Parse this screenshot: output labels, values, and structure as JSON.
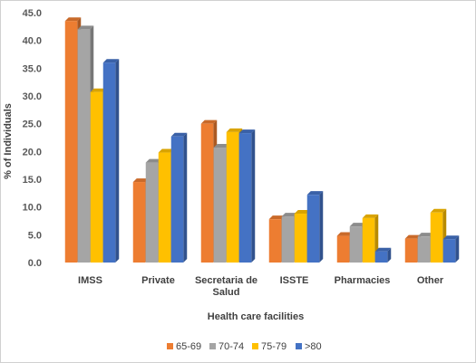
{
  "chart_data": {
    "type": "bar",
    "xlabel": "Health care facilities",
    "ylabel": "% of Individuals",
    "ylim": [
      0,
      45
    ],
    "ytick_step": 5,
    "ytick_labels": [
      "0.0",
      "5.0",
      "10.0",
      "15.0",
      "20.0",
      "25.0",
      "30.0",
      "35.0",
      "40.0",
      "45.0"
    ],
    "grid": false,
    "legend_position": "bottom",
    "categories": [
      [
        "IMSS"
      ],
      [
        "Private"
      ],
      [
        "Secretaria de",
        "Salud"
      ],
      [
        "ISSTE"
      ],
      [
        "Pharmacies"
      ],
      [
        "Other"
      ]
    ],
    "series": [
      {
        "name": "65-69",
        "color": "#ED7D31",
        "values": [
          43.5,
          14.5,
          25.0,
          7.8,
          4.8,
          4.3
        ]
      },
      {
        "name": "70-74",
        "color": "#A5A5A5",
        "values": [
          42.0,
          18.0,
          20.7,
          8.3,
          6.5,
          4.7
        ]
      },
      {
        "name": "75-79",
        "color": "#FFC000",
        "values": [
          30.7,
          19.8,
          23.5,
          8.8,
          8.0,
          9.0
        ]
      },
      {
        "name": ">80",
        "color": "#4472C4",
        "values": [
          36.0,
          22.7,
          23.3,
          12.2,
          2.0,
          4.2
        ]
      }
    ]
  }
}
